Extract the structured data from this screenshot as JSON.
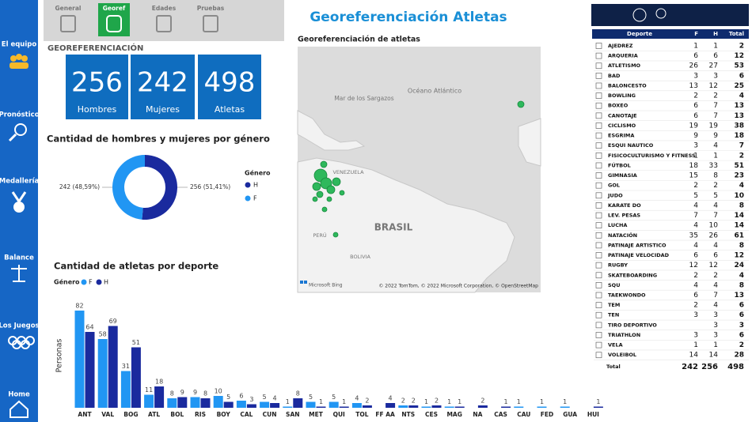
{
  "sidebar": [
    "El equipo",
    "Pronóstico",
    "Medallería",
    "Balance",
    "Los Juegos",
    "Home"
  ],
  "tabs": [
    "General",
    "Georef",
    "Edades",
    "Pruebas"
  ],
  "title": "Georeferenciación Atletas",
  "section": "GEOREFERENCIACIÓN",
  "cards": [
    {
      "value": 256,
      "label": "Hombres"
    },
    {
      "value": 242,
      "label": "Mujeres"
    },
    {
      "value": 498,
      "label": "Atletas"
    }
  ],
  "donut": {
    "title": "Cantidad de hombres y mujeres por género",
    "legend_title": "Género",
    "series": [
      {
        "name": "H",
        "color": "#1a2a9e",
        "value": 256,
        "label": "256 (51,41%)"
      },
      {
        "name": "F",
        "color": "#2196f3",
        "value": 242,
        "label": "242 (48,59%)"
      }
    ]
  },
  "bar_chart": {
    "title": "Cantidad de atletas por deporte",
    "y_label": "Personas",
    "legend_title": "Género",
    "categories": [
      "ANT",
      "VAL",
      "BOG",
      "ATL",
      "BOL",
      "RIS",
      "BOY",
      "CAL",
      "CUN",
      "SAN",
      "MET",
      "QUI",
      "TOL",
      "FF AA",
      "NTS",
      "CES",
      "MAG",
      "NA",
      "CAS",
      "CAU",
      "FED",
      "GUA",
      "HUI"
    ],
    "series": [
      {
        "name": "F",
        "color": "#2196f3",
        "values": [
          82,
          58,
          31,
          11,
          8,
          9,
          10,
          6,
          5,
          1,
          5,
          5,
          4,
          null,
          2,
          1,
          1,
          null,
          null,
          1,
          1,
          1,
          null
        ]
      },
      {
        "name": "H",
        "color": "#1a2a9e",
        "values": [
          64,
          69,
          51,
          18,
          9,
          8,
          5,
          3,
          4,
          8,
          1,
          1,
          2,
          4,
          2,
          2,
          1,
          2,
          1,
          null,
          null,
          null,
          1
        ]
      }
    ]
  },
  "map": {
    "title": "Georeferenciación de atletas",
    "labels": [
      "Océano Atlántico",
      "Mar de los Sargazos",
      "VENEZUELA",
      "BRASIL",
      "PERÚ",
      "BOLIVIA"
    ],
    "attribution": "© 2022 TomTom, © 2022 Microsoft Corporation, © OpenStreetMap",
    "provider": "Microsoft Bing"
  },
  "table": {
    "columns": [
      "Deporte",
      "F",
      "H",
      "Total"
    ],
    "rows": [
      [
        "AJEDREZ",
        1,
        1,
        2
      ],
      [
        "ARQUERIA",
        6,
        6,
        12
      ],
      [
        "ATLETISMO",
        26,
        27,
        53
      ],
      [
        "BAD",
        3,
        3,
        6
      ],
      [
        "BALONCESTO",
        13,
        12,
        25
      ],
      [
        "BOWLING",
        2,
        2,
        4
      ],
      [
        "BOXEO",
        6,
        7,
        13
      ],
      [
        "CANOTAJE",
        6,
        7,
        13
      ],
      [
        "CICLISMO",
        19,
        19,
        38
      ],
      [
        "ESGRIMA",
        9,
        9,
        18
      ],
      [
        "ESQUI NAUTICO",
        3,
        4,
        7
      ],
      [
        "FISICOCULTURISMO Y FITNESS",
        1,
        1,
        2
      ],
      [
        "FÚTBOL",
        18,
        33,
        51
      ],
      [
        "GIMNASIA",
        15,
        8,
        23
      ],
      [
        "GOL",
        2,
        2,
        4
      ],
      [
        "JUDO",
        5,
        5,
        10
      ],
      [
        "KARATE DO",
        4,
        4,
        8
      ],
      [
        "LEV. PESAS",
        7,
        7,
        14
      ],
      [
        "LUCHA",
        4,
        10,
        14
      ],
      [
        "NATACIÓN",
        35,
        26,
        61
      ],
      [
        "PATINAJE ARTISTICO",
        4,
        4,
        8
      ],
      [
        "PATINAJE VELOCIDAD",
        6,
        6,
        12
      ],
      [
        "RUGBY",
        12,
        12,
        24
      ],
      [
        "SKATEBOARDING",
        2,
        2,
        4
      ],
      [
        "SQU",
        4,
        4,
        8
      ],
      [
        "TAEKWONDO",
        6,
        7,
        13
      ],
      [
        "TEM",
        2,
        4,
        6
      ],
      [
        "TEN",
        3,
        3,
        6
      ],
      [
        "TIRO DEPORTIVO",
        null,
        3,
        3
      ],
      [
        "TRIATHLON",
        3,
        3,
        6
      ],
      [
        "VELA",
        1,
        1,
        2
      ],
      [
        "VOLEIBOL",
        14,
        14,
        28
      ]
    ],
    "total": [
      "Total",
      242,
      256,
      498
    ]
  }
}
